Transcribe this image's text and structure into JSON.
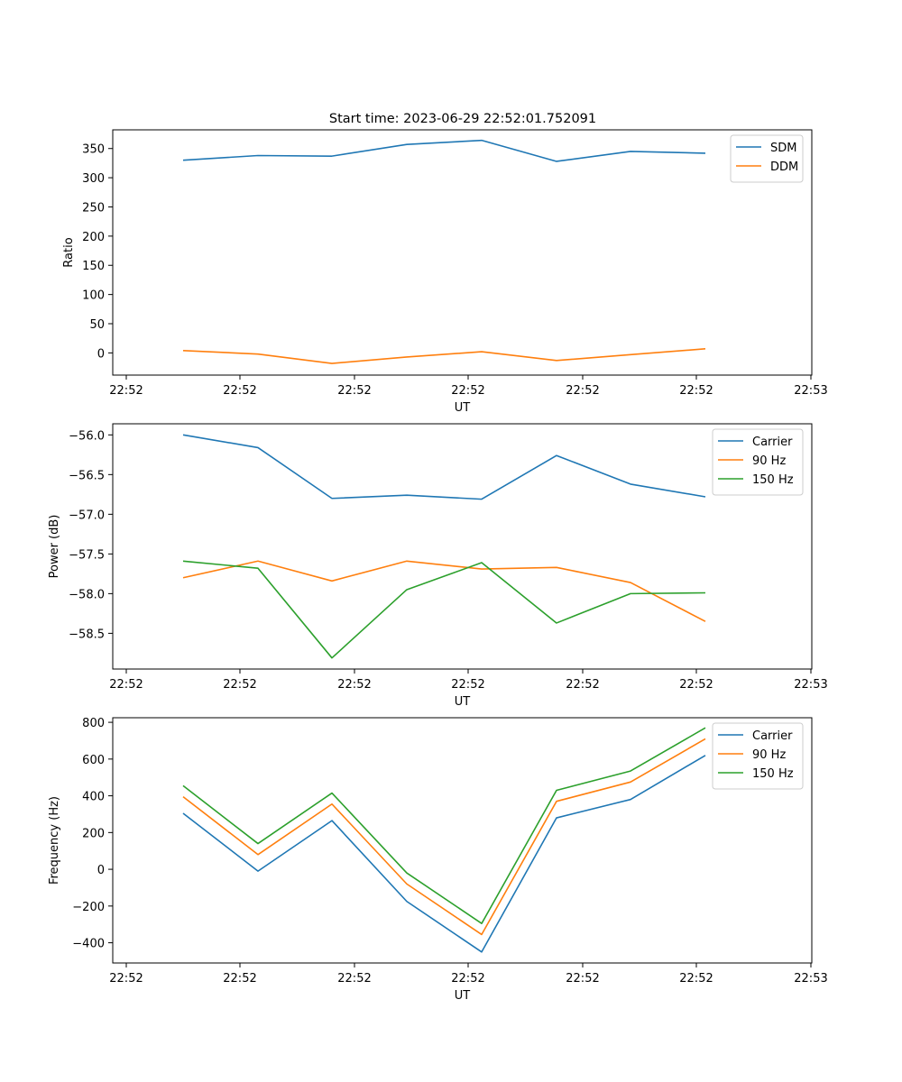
{
  "title": "Start time: 2023-06-29 22:52:01.752091",
  "colors": {
    "blue": "#1f77b4",
    "orange": "#ff7f0e",
    "green": "#2ca02c"
  },
  "chart_data": [
    {
      "type": "line",
      "xlabel": "UT",
      "ylabel": "Ratio",
      "x_tick_labels": [
        "22:52",
        "22:52",
        "22:52",
        "22:52",
        "22:52",
        "22:52",
        "22:52"
      ],
      "x_tick_last": "22:53",
      "ylim": [
        -38,
        382
      ],
      "y_ticks": [
        0,
        50,
        100,
        150,
        200,
        250,
        300,
        350
      ],
      "legend_position": "top-right",
      "series": [
        {
          "name": "SDM",
          "color": "#1f77b4",
          "values": [
            330,
            338,
            337,
            357,
            364,
            328,
            345,
            342
          ]
        },
        {
          "name": "DDM",
          "color": "#ff7f0e",
          "values": [
            4,
            -2,
            -18,
            -7,
            2,
            -13,
            -3,
            7
          ]
        }
      ]
    },
    {
      "type": "line",
      "xlabel": "UT",
      "ylabel": "Power (dB)",
      "x_tick_labels": [
        "22:52",
        "22:52",
        "22:52",
        "22:52",
        "22:52",
        "22:52",
        "22:52"
      ],
      "x_tick_last": "22:53",
      "ylim": [
        -58.95,
        -55.86
      ],
      "y_ticks": [
        -56.0,
        -56.5,
        -57.0,
        -57.5,
        -58.0,
        -58.5
      ],
      "y_tick_labels": [
        "−56.0",
        "−56.5",
        "−57.0",
        "−57.5",
        "−58.0",
        "−58.5"
      ],
      "legend_position": "top-right",
      "series": [
        {
          "name": "Carrier",
          "color": "#1f77b4",
          "values": [
            -56.0,
            -56.16,
            -56.8,
            -56.76,
            -56.81,
            -56.26,
            -56.62,
            -56.78
          ]
        },
        {
          "name": "90 Hz",
          "color": "#ff7f0e",
          "values": [
            -57.8,
            -57.59,
            -57.84,
            -57.59,
            -57.69,
            -57.67,
            -57.86,
            -58.35
          ]
        },
        {
          "name": "150 Hz",
          "color": "#2ca02c",
          "values": [
            -57.59,
            -57.68,
            -58.81,
            -57.95,
            -57.61,
            -58.37,
            -58.0,
            -57.99
          ]
        }
      ]
    },
    {
      "type": "line",
      "xlabel": "UT",
      "ylabel": "Frequency (Hz)",
      "x_tick_labels": [
        "22:52",
        "22:52",
        "22:52",
        "22:52",
        "22:52",
        "22:52",
        "22:52"
      ],
      "x_tick_last": "22:53",
      "ylim": [
        -510,
        825
      ],
      "y_ticks": [
        -400,
        -200,
        0,
        200,
        400,
        600,
        800
      ],
      "y_tick_labels": [
        "−400",
        "−200",
        "0",
        "200",
        "400",
        "600",
        "800"
      ],
      "legend_position": "top-right",
      "series": [
        {
          "name": "Carrier",
          "color": "#1f77b4",
          "values": [
            305,
            -10,
            265,
            -175,
            -450,
            280,
            380,
            620
          ]
        },
        {
          "name": "90 Hz",
          "color": "#ff7f0e",
          "values": [
            395,
            80,
            355,
            -80,
            -355,
            370,
            475,
            710
          ]
        },
        {
          "name": "150 Hz",
          "color": "#2ca02c",
          "values": [
            455,
            140,
            415,
            -20,
            -295,
            430,
            535,
            770
          ]
        }
      ]
    }
  ]
}
